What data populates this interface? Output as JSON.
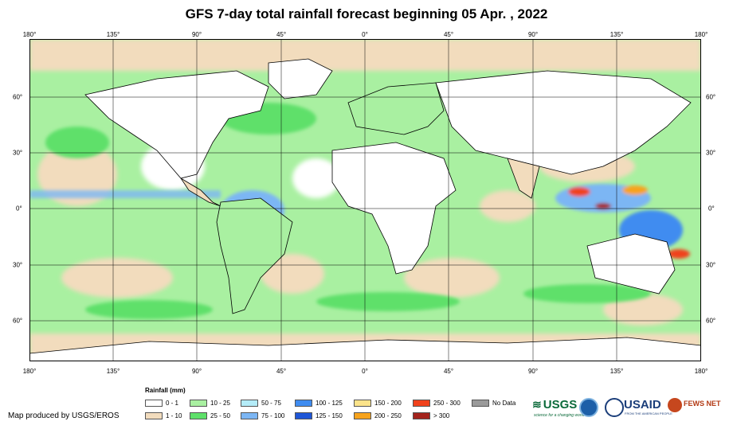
{
  "title": "GFS 7-day total rainfall forecast beginning 05 Apr. , 2022",
  "lon_labels": [
    "180°",
    "135°",
    "90°",
    "45°",
    "0°",
    "45°",
    "90°",
    "135°",
    "180°"
  ],
  "lat_labels": [
    "60°",
    "30°",
    "0°",
    "30°",
    "60°"
  ],
  "legend": {
    "title": "Rainfall (mm)",
    "items": [
      {
        "label": "0 - 1",
        "color": "#ffffff"
      },
      {
        "label": "1 - 10",
        "color": "#f2dcbd"
      },
      {
        "label": "10 - 25",
        "color": "#a9f0a1"
      },
      {
        "label": "25 - 50",
        "color": "#5ee06a"
      },
      {
        "label": "50 - 75",
        "color": "#b4ecf8"
      },
      {
        "label": "75 - 100",
        "color": "#7cb6f4"
      },
      {
        "label": "100 - 125",
        "color": "#3f8cf0"
      },
      {
        "label": "125 - 150",
        "color": "#1f56d6"
      },
      {
        "label": "150 - 200",
        "color": "#fbe38a"
      },
      {
        "label": "200 - 250",
        "color": "#f7a31c"
      },
      {
        "label": "250 - 300",
        "color": "#f0421c"
      },
      {
        "label": "> 300",
        "color": "#a3241d"
      },
      {
        "label": "No Data",
        "color": "#9a9a9a"
      }
    ]
  },
  "credit": "Map produced by USGS/EROS",
  "logos": {
    "usgs": "USGS",
    "usgs_tagline": "science for a changing world",
    "usaid": "USAID",
    "usaid_tagline": "FROM THE AMERICAN PEOPLE",
    "fews": "FEWS NET"
  }
}
